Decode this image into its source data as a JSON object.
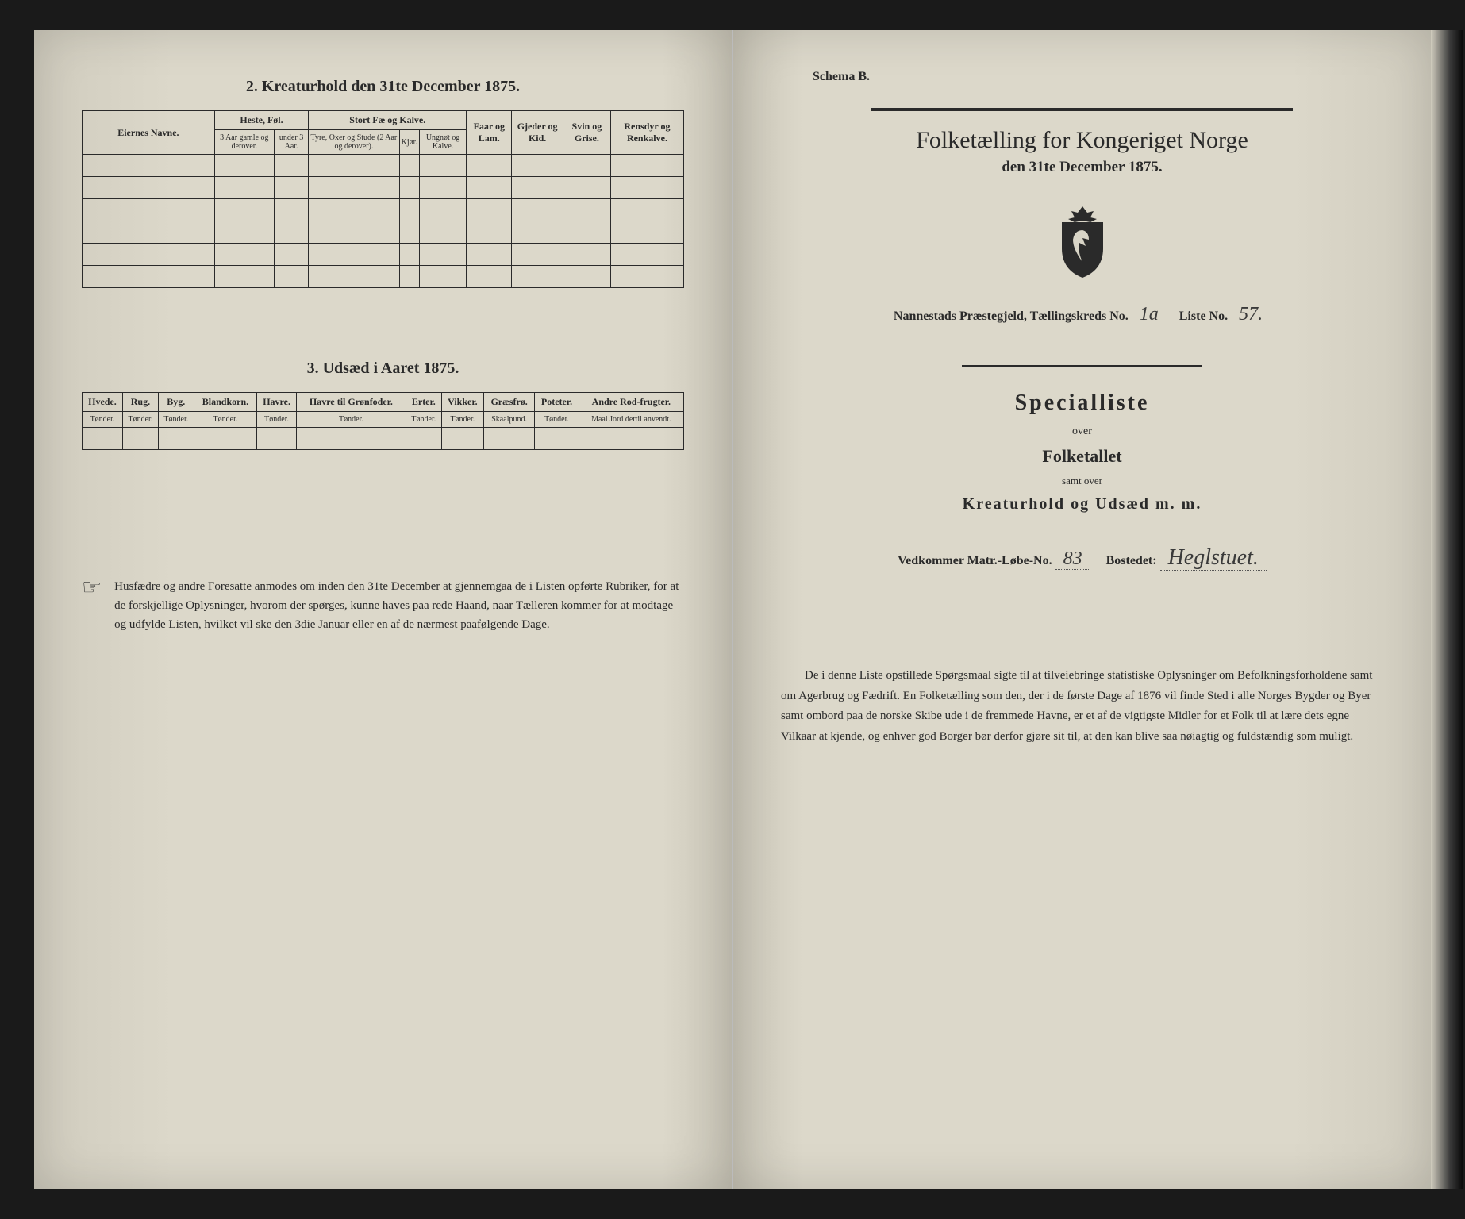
{
  "colors": {
    "paper": "#d8d4c6",
    "ink": "#2a2a2a",
    "background": "#1a1a1a"
  },
  "left": {
    "t2_title": "2.  Kreaturhold den 31te December 1875.",
    "t2": {
      "col_eiernes": "Eiernes Navne.",
      "grp_heste": "Heste, Føl.",
      "grp_stort": "Stort Fæ og Kalve.",
      "col_faar": "Faar og Lam.",
      "col_gjeder": "Gjeder og Kid.",
      "col_svin": "Svin og Grise.",
      "col_rensdyr": "Rensdyr og Renkalve.",
      "sub_heste_a": "3 Aar gamle og derover.",
      "sub_heste_b": "under 3 Aar.",
      "sub_stort_a": "Tyre, Oxer og Stude (2 Aar og derover).",
      "sub_stort_b": "Kjør.",
      "sub_stort_c": "Ungnøt og Kalve."
    },
    "t3_title": "3.  Udsæd i Aaret 1875.",
    "t3": {
      "cols": [
        {
          "h": "Hvede.",
          "s": "Tønder."
        },
        {
          "h": "Rug.",
          "s": "Tønder."
        },
        {
          "h": "Byg.",
          "s": "Tønder."
        },
        {
          "h": "Blandkorn.",
          "s": "Tønder."
        },
        {
          "h": "Havre.",
          "s": "Tønder."
        },
        {
          "h": "Havre til Grønfoder.",
          "s": "Tønder."
        },
        {
          "h": "Erter.",
          "s": "Tønder."
        },
        {
          "h": "Vikker.",
          "s": "Tønder."
        },
        {
          "h": "Græsfrø.",
          "s": "Skaalpund."
        },
        {
          "h": "Poteter.",
          "s": "Tønder."
        },
        {
          "h": "Andre Rod-frugter.",
          "s": "Maal Jord dertil anvendt."
        }
      ]
    },
    "note": "Husfædre og andre Foresatte anmodes om inden den 31te December at gjennemgaa de i Listen opførte Rubriker, for at de forskjellige Oplysninger, hvorom der spørges, kunne haves paa rede Haand, naar Tælleren kommer for at modtage og udfylde Listen, hvilket vil ske den 3die Januar eller en af de nærmest paafølgende Dage."
  },
  "right": {
    "schema": "Schema B.",
    "title": "Folketælling for Kongeriget Norge",
    "subtitle": "den 31te December 1875.",
    "parish_label": "Nannestads Præstegjeld, Tællingskreds No.",
    "kreds_no": "1a",
    "liste_label": "Liste No.",
    "liste_no": "57.",
    "special": "Specialliste",
    "over": "over",
    "folketallet": "Folketallet",
    "samt": "samt over",
    "kreatur": "Kreaturhold og Udsæd m. m.",
    "lobe_label": "Vedkommer Matr.-Løbe-No.",
    "lobe_no": "83",
    "bostedet_label": "Bostedet:",
    "bostedet": "Heglstuet.",
    "note": "De i denne Liste opstillede Spørgsmaal sigte til at tilveiebringe statistiske Oplysninger om Befolkningsforholdene samt om Agerbrug og Fædrift. En Folketælling som den, der i de første Dage af 1876 vil finde Sted i alle Norges Bygder og Byer samt ombord paa de norske Skibe ude i de fremmede Havne, er et af de vigtigste Midler for et Folk til at lære dets egne Vilkaar at kjende, og enhver god Borger bør derfor gjøre sit til, at den kan blive saa nøiagtig og fuldstændig som muligt."
  }
}
